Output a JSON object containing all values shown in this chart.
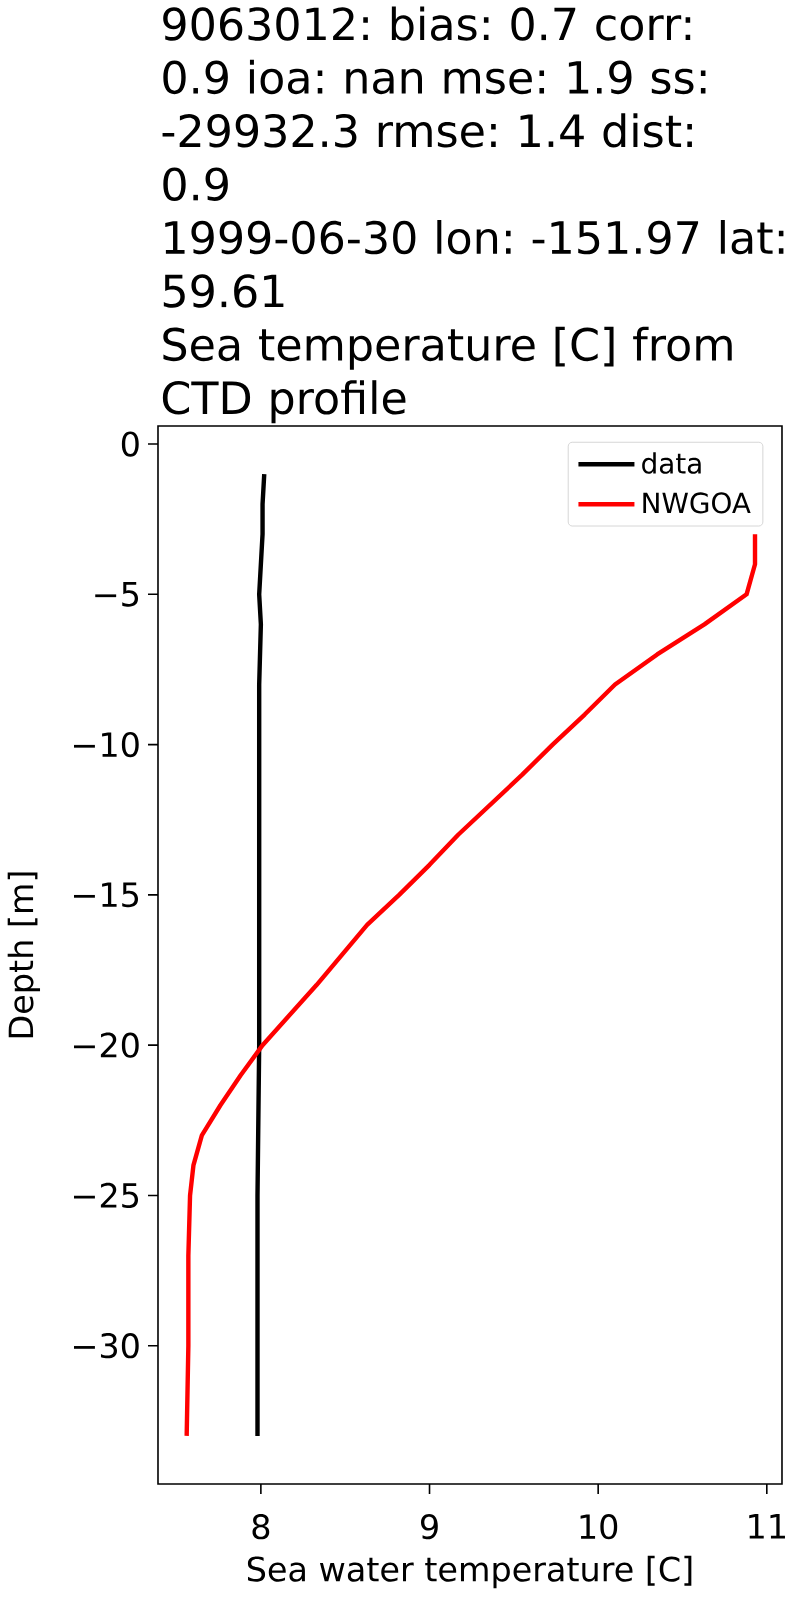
{
  "chart_data": {
    "type": "line",
    "title": "9063012: bias: 0.7 corr: 0.9 ioa: nan mse: 1.9 ss: -29932.3 rmse: 1.4 dist: 0.9",
    "subtitle": "1999-06-30 lon: -151.97 lat: 59.61",
    "annotations": [
      "Sea temperature [C] from CTD profile"
    ],
    "xlabel": "Sea water temperature [C]",
    "ylabel": "Depth [m]",
    "series": [
      {
        "name": "data",
        "color": "#000000",
        "x": [
          8.02,
          8.01,
          8.01,
          8.0,
          7.99,
          8.0,
          7.99,
          7.99,
          7.99,
          7.99,
          7.98,
          7.98,
          7.98
        ],
        "values": [
          -1,
          -2,
          -3,
          -4,
          -5,
          -6,
          -8,
          -10,
          -15,
          -20,
          -25,
          -30,
          -33
        ]
      },
      {
        "name": "NWGOA",
        "color": "#ff0000",
        "x": [
          10.93,
          10.93,
          10.88,
          10.63,
          10.35,
          10.1,
          9.92,
          9.73,
          9.55,
          9.36,
          9.17,
          9.0,
          8.82,
          8.63,
          8.48,
          8.33,
          8.17,
          8.01,
          7.88,
          7.76,
          7.65,
          7.6,
          7.58,
          7.57,
          7.57,
          7.56
        ],
        "values": [
          -3,
          -4,
          -5,
          -6,
          -7,
          -8,
          -9,
          -10,
          -11,
          -12,
          -13,
          -14,
          -15,
          -16,
          -17,
          -18,
          -19,
          -20,
          -21,
          -22,
          -23,
          -24,
          -25,
          -27,
          -30,
          -33
        ]
      }
    ],
    "xlim": [
      7.39,
      11.09
    ],
    "ylim": [
      -34.6,
      0.6
    ],
    "xticks": [
      8,
      9,
      10,
      11
    ],
    "yticks": [
      {
        "value": -30,
        "label": "−30"
      },
      {
        "value": -25,
        "label": "−25"
      },
      {
        "value": -20,
        "label": "−20"
      },
      {
        "value": -15,
        "label": "−15"
      },
      {
        "value": -10,
        "label": "−10"
      },
      {
        "value": -5,
        "label": "−5"
      },
      0
    ],
    "legend": "top right"
  }
}
